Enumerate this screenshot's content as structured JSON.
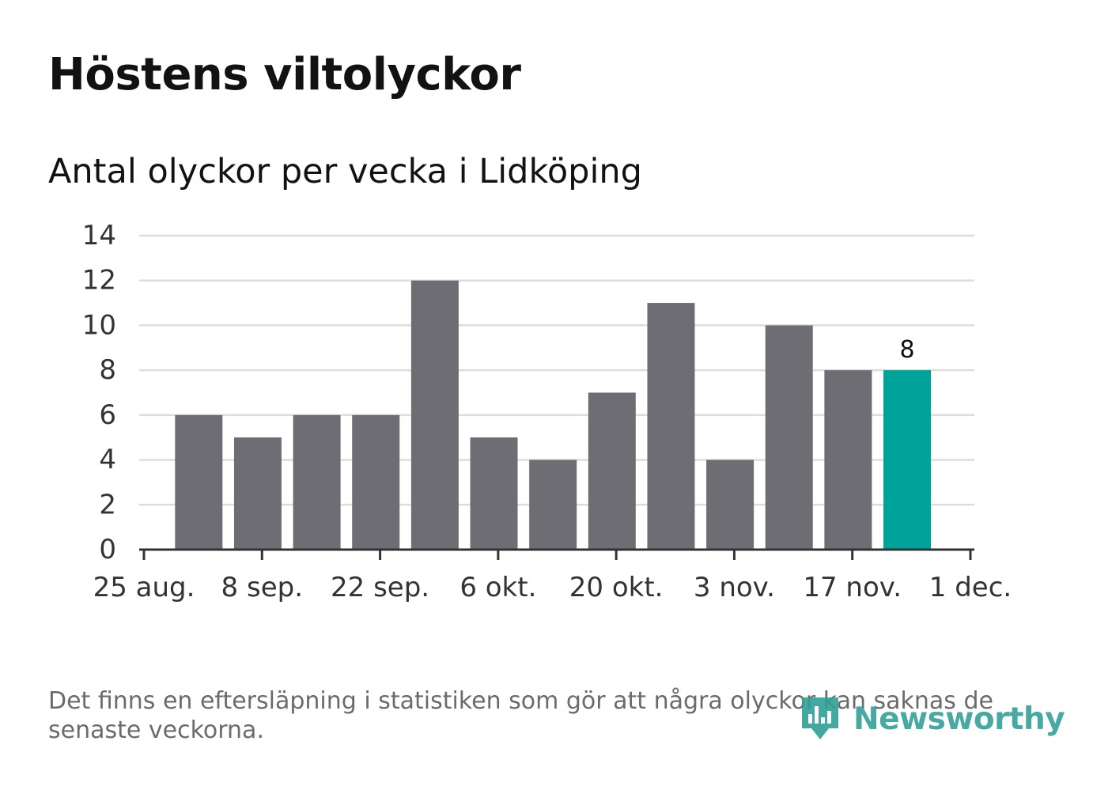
{
  "title": "Höstens viltolyckor",
  "subtitle": "Antal olyckor per vecka i Lidköping",
  "footnote": "Det finns en eftersläpning i statistiken som gör att några olyckor kan saknas de senaste veckorna.",
  "brand": {
    "name": "Newsworthy",
    "icon": "newsworthy-logo-icon",
    "color": "#2f9e96"
  },
  "colors": {
    "bar": "#6e6d73",
    "highlight": "#00a399",
    "grid": "#dddddd",
    "axis": "#333333",
    "tick_label": "#333333"
  },
  "chart_data": {
    "type": "bar",
    "title": "Höstens viltolyckor",
    "subtitle": "Antal olyckor per vecka i Lidköping",
    "xlabel": "",
    "ylabel": "",
    "ylim": [
      0,
      14
    ],
    "yticks": [
      0,
      2,
      4,
      6,
      8,
      10,
      12,
      14
    ],
    "grid": true,
    "legend": "none",
    "x_start": "2025-08-25",
    "x_end": "2025-12-01",
    "xticks": [
      {
        "date": "2025-08-25",
        "label": "25 aug."
      },
      {
        "date": "2025-09-08",
        "label": "8 sep."
      },
      {
        "date": "2025-09-22",
        "label": "22 sep."
      },
      {
        "date": "2025-10-06",
        "label": "6 okt."
      },
      {
        "date": "2025-10-20",
        "label": "20 okt."
      },
      {
        "date": "2025-11-03",
        "label": "3 nov."
      },
      {
        "date": "2025-11-17",
        "label": "17 nov."
      },
      {
        "date": "2025-12-01",
        "label": "1 dec."
      }
    ],
    "bars": [
      {
        "week_start": "2025-08-28",
        "value": 6
      },
      {
        "week_start": "2025-09-04",
        "value": 5
      },
      {
        "week_start": "2025-09-11",
        "value": 6
      },
      {
        "week_start": "2025-09-18",
        "value": 6
      },
      {
        "week_start": "2025-09-25",
        "value": 12
      },
      {
        "week_start": "2025-10-02",
        "value": 5
      },
      {
        "week_start": "2025-10-09",
        "value": 4
      },
      {
        "week_start": "2025-10-16",
        "value": 7
      },
      {
        "week_start": "2025-10-23",
        "value": 11
      },
      {
        "week_start": "2025-10-30",
        "value": 4
      },
      {
        "week_start": "2025-11-06",
        "value": 10
      },
      {
        "week_start": "2025-11-13",
        "value": 8
      },
      {
        "week_start": "2025-11-20",
        "value": 8,
        "highlight": true,
        "label": "8"
      }
    ]
  }
}
